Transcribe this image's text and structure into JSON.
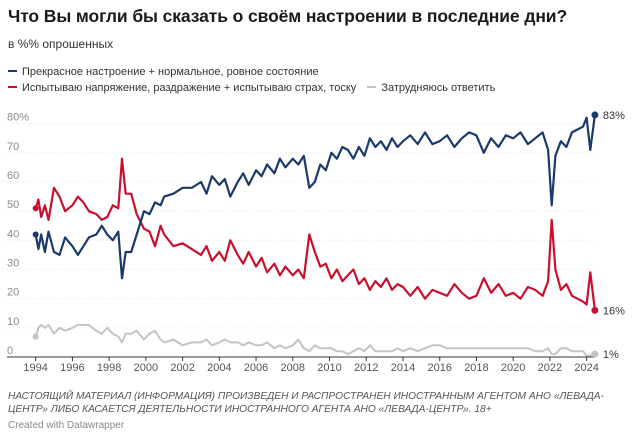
{
  "header": {
    "title": "Что Вы могли бы сказать о своём настроении в последние дни?",
    "subtitle": "в %% опрошенных"
  },
  "footer": {
    "note": "НАСТОЯЩИЙ МАТЕРИАЛ (ИНФОРМАЦИЯ) ПРОИЗВЕДЕН И РАСПРОСТРАНЕН ИНОСТРАННЫМ АГЕНТОМ АНО «ЛЕВАДА-ЦЕНТР» ЛИБО КАСАЕТСЯ ДЕЯТЕЛЬНОСТИ ИНОСТРАННОГО АГЕНТА АНО «ЛЕВАДА-ЦЕНТР». 18+",
    "credit": "Created with Datawrapper"
  },
  "chart_data": {
    "type": "line",
    "title": "Что Вы могли бы сказать о своём настроении в последние дни?",
    "subtitle": "в %% опрошенных",
    "xlim": [
      1993.8,
      2025.0
    ],
    "ylim": [
      0,
      84
    ],
    "x_ticks": [
      1994,
      1996,
      1998,
      2000,
      2002,
      2004,
      2006,
      2008,
      2010,
      2012,
      2014,
      2016,
      2018,
      2020,
      2022,
      2024
    ],
    "y_ticks": [
      0,
      10,
      20,
      30,
      40,
      50,
      60,
      70,
      80
    ],
    "y_tick_labels": [
      "0",
      "10",
      "20",
      "30",
      "40",
      "50",
      "60",
      "70",
      "80%"
    ],
    "grid": true,
    "legend_position": "top",
    "series": [
      {
        "name": "Прекрасное настроение + нормальное, ровное состояние",
        "color": "#1b3a6b",
        "end_label": "83%",
        "points": [
          [
            1994.0,
            42
          ],
          [
            1994.15,
            37
          ],
          [
            1994.3,
            42
          ],
          [
            1994.5,
            36
          ],
          [
            1994.7,
            43
          ],
          [
            1995.0,
            36
          ],
          [
            1995.3,
            35
          ],
          [
            1995.6,
            41
          ],
          [
            1996.0,
            38
          ],
          [
            1996.3,
            35
          ],
          [
            1996.6,
            38
          ],
          [
            1996.9,
            41
          ],
          [
            1997.3,
            42
          ],
          [
            1997.6,
            45
          ],
          [
            1997.9,
            42
          ],
          [
            1998.2,
            40
          ],
          [
            1998.5,
            43
          ],
          [
            1998.7,
            27
          ],
          [
            1998.9,
            36
          ],
          [
            1999.2,
            36
          ],
          [
            1999.5,
            42
          ],
          [
            1999.9,
            50
          ],
          [
            2000.2,
            49
          ],
          [
            2000.5,
            53
          ],
          [
            2000.8,
            52
          ],
          [
            2001.0,
            55
          ],
          [
            2001.5,
            56
          ],
          [
            2002.0,
            58
          ],
          [
            2002.5,
            58
          ],
          [
            2003.0,
            60
          ],
          [
            2003.3,
            56
          ],
          [
            2003.6,
            62
          ],
          [
            2004.0,
            59
          ],
          [
            2004.3,
            61
          ],
          [
            2004.6,
            55
          ],
          [
            2005.0,
            60
          ],
          [
            2005.3,
            63
          ],
          [
            2005.6,
            59
          ],
          [
            2006.0,
            64
          ],
          [
            2006.3,
            62
          ],
          [
            2006.6,
            66
          ],
          [
            2007.0,
            63
          ],
          [
            2007.3,
            68
          ],
          [
            2007.6,
            65
          ],
          [
            2008.0,
            68
          ],
          [
            2008.3,
            66
          ],
          [
            2008.6,
            69
          ],
          [
            2008.9,
            58
          ],
          [
            2009.2,
            60
          ],
          [
            2009.5,
            66
          ],
          [
            2009.8,
            64
          ],
          [
            2010.1,
            70
          ],
          [
            2010.4,
            68
          ],
          [
            2010.7,
            72
          ],
          [
            2011.0,
            71
          ],
          [
            2011.3,
            68
          ],
          [
            2011.6,
            72
          ],
          [
            2011.9,
            69
          ],
          [
            2012.2,
            75
          ],
          [
            2012.5,
            72
          ],
          [
            2012.8,
            74
          ],
          [
            2013.1,
            71
          ],
          [
            2013.4,
            75
          ],
          [
            2013.7,
            72
          ],
          [
            2014.0,
            74
          ],
          [
            2014.4,
            76
          ],
          [
            2014.8,
            73
          ],
          [
            2015.2,
            77
          ],
          [
            2015.6,
            73
          ],
          [
            2016.0,
            74
          ],
          [
            2016.4,
            76
          ],
          [
            2016.8,
            72
          ],
          [
            2017.2,
            75
          ],
          [
            2017.6,
            77
          ],
          [
            2018.0,
            76
          ],
          [
            2018.4,
            70
          ],
          [
            2018.8,
            75
          ],
          [
            2019.2,
            72
          ],
          [
            2019.6,
            76
          ],
          [
            2020.0,
            75
          ],
          [
            2020.4,
            77
          ],
          [
            2020.8,
            73
          ],
          [
            2021.2,
            75
          ],
          [
            2021.6,
            77
          ],
          [
            2021.9,
            71
          ],
          [
            2022.1,
            52
          ],
          [
            2022.3,
            69
          ],
          [
            2022.6,
            74
          ],
          [
            2022.9,
            72
          ],
          [
            2023.2,
            77
          ],
          [
            2023.5,
            78
          ],
          [
            2023.8,
            79
          ],
          [
            2024.0,
            82
          ],
          [
            2024.2,
            71
          ],
          [
            2024.45,
            83
          ]
        ]
      },
      {
        "name": "Испытываю напряжение, раздражение + испытываю страх, тоску",
        "color": "#c8102e",
        "end_label": "16%",
        "points": [
          [
            1994.0,
            51
          ],
          [
            1994.15,
            54
          ],
          [
            1994.3,
            48
          ],
          [
            1994.5,
            52
          ],
          [
            1994.7,
            47
          ],
          [
            1995.0,
            58
          ],
          [
            1995.3,
            55
          ],
          [
            1995.6,
            50
          ],
          [
            1996.0,
            52
          ],
          [
            1996.3,
            55
          ],
          [
            1996.6,
            53
          ],
          [
            1996.9,
            50
          ],
          [
            1997.3,
            49
          ],
          [
            1997.6,
            47
          ],
          [
            1997.9,
            48
          ],
          [
            1998.2,
            52
          ],
          [
            1998.5,
            51
          ],
          [
            1998.7,
            68
          ],
          [
            1998.9,
            56
          ],
          [
            1999.2,
            56
          ],
          [
            1999.5,
            49
          ],
          [
            1999.9,
            44
          ],
          [
            2000.2,
            43
          ],
          [
            2000.5,
            38
          ],
          [
            2000.8,
            45
          ],
          [
            2001.0,
            42
          ],
          [
            2001.5,
            38
          ],
          [
            2002.0,
            39
          ],
          [
            2002.5,
            37
          ],
          [
            2003.0,
            35
          ],
          [
            2003.3,
            38
          ],
          [
            2003.6,
            33
          ],
          [
            2004.0,
            36
          ],
          [
            2004.3,
            33
          ],
          [
            2004.6,
            40
          ],
          [
            2005.0,
            35
          ],
          [
            2005.3,
            32
          ],
          [
            2005.6,
            36
          ],
          [
            2006.0,
            31
          ],
          [
            2006.3,
            34
          ],
          [
            2006.6,
            29
          ],
          [
            2007.0,
            32
          ],
          [
            2007.3,
            28
          ],
          [
            2007.6,
            31
          ],
          [
            2008.0,
            28
          ],
          [
            2008.3,
            30
          ],
          [
            2008.6,
            27
          ],
          [
            2008.9,
            42
          ],
          [
            2009.2,
            36
          ],
          [
            2009.5,
            31
          ],
          [
            2009.8,
            32
          ],
          [
            2010.1,
            27
          ],
          [
            2010.4,
            30
          ],
          [
            2010.7,
            26
          ],
          [
            2011.0,
            28
          ],
          [
            2011.3,
            30
          ],
          [
            2011.6,
            25
          ],
          [
            2011.9,
            27
          ],
          [
            2012.2,
            23
          ],
          [
            2012.5,
            26
          ],
          [
            2012.8,
            24
          ],
          [
            2013.1,
            27
          ],
          [
            2013.4,
            23
          ],
          [
            2013.7,
            25
          ],
          [
            2014.0,
            24
          ],
          [
            2014.4,
            21
          ],
          [
            2014.8,
            24
          ],
          [
            2015.2,
            20
          ],
          [
            2015.6,
            23
          ],
          [
            2016.0,
            22
          ],
          [
            2016.4,
            21
          ],
          [
            2016.8,
            25
          ],
          [
            2017.2,
            22
          ],
          [
            2017.6,
            20
          ],
          [
            2018.0,
            21
          ],
          [
            2018.4,
            27
          ],
          [
            2018.8,
            22
          ],
          [
            2019.2,
            25
          ],
          [
            2019.6,
            21
          ],
          [
            2020.0,
            22
          ],
          [
            2020.4,
            20
          ],
          [
            2020.8,
            24
          ],
          [
            2021.2,
            23
          ],
          [
            2021.6,
            21
          ],
          [
            2021.9,
            26
          ],
          [
            2022.1,
            47
          ],
          [
            2022.3,
            30
          ],
          [
            2022.6,
            23
          ],
          [
            2022.9,
            25
          ],
          [
            2023.2,
            21
          ],
          [
            2023.5,
            20
          ],
          [
            2023.8,
            19
          ],
          [
            2024.0,
            18
          ],
          [
            2024.2,
            29
          ],
          [
            2024.45,
            16
          ]
        ]
      },
      {
        "name": "Затрудняюсь ответить",
        "color": "#c4c4c4",
        "end_label": "1%",
        "points": [
          [
            1994.0,
            7
          ],
          [
            1994.15,
            10
          ],
          [
            1994.3,
            11
          ],
          [
            1994.5,
            10
          ],
          [
            1994.7,
            11
          ],
          [
            1995.0,
            8
          ],
          [
            1995.3,
            10
          ],
          [
            1995.6,
            9
          ],
          [
            1996.0,
            10
          ],
          [
            1996.3,
            11
          ],
          [
            1996.6,
            11
          ],
          [
            1996.9,
            11
          ],
          [
            1997.3,
            9
          ],
          [
            1997.6,
            8
          ],
          [
            1997.9,
            10
          ],
          [
            1998.2,
            8
          ],
          [
            1998.5,
            7
          ],
          [
            1998.7,
            5
          ],
          [
            1998.9,
            8
          ],
          [
            1999.2,
            8
          ],
          [
            1999.5,
            9
          ],
          [
            1999.9,
            6
          ],
          [
            2000.2,
            8
          ],
          [
            2000.5,
            9
          ],
          [
            2000.8,
            6
          ],
          [
            2001.0,
            5
          ],
          [
            2001.5,
            6
          ],
          [
            2002.0,
            4
          ],
          [
            2002.5,
            5
          ],
          [
            2003.0,
            5
          ],
          [
            2003.3,
            6
          ],
          [
            2003.6,
            4
          ],
          [
            2004.0,
            5
          ],
          [
            2004.3,
            6
          ],
          [
            2004.6,
            5
          ],
          [
            2005.0,
            5
          ],
          [
            2005.3,
            4
          ],
          [
            2005.6,
            5
          ],
          [
            2006.0,
            4
          ],
          [
            2006.3,
            4
          ],
          [
            2006.6,
            5
          ],
          [
            2007.0,
            3
          ],
          [
            2007.3,
            4
          ],
          [
            2007.6,
            3
          ],
          [
            2008.0,
            4
          ],
          [
            2008.3,
            6
          ],
          [
            2008.6,
            3
          ],
          [
            2008.9,
            2
          ],
          [
            2009.2,
            4
          ],
          [
            2009.5,
            3
          ],
          [
            2009.8,
            3
          ],
          [
            2010.1,
            3
          ],
          [
            2010.4,
            2
          ],
          [
            2010.7,
            2
          ],
          [
            2011.0,
            1
          ],
          [
            2011.3,
            2
          ],
          [
            2011.6,
            3
          ],
          [
            2011.9,
            2
          ],
          [
            2012.2,
            4
          ],
          [
            2012.5,
            2
          ],
          [
            2012.8,
            2
          ],
          [
            2013.1,
            2
          ],
          [
            2013.4,
            2
          ],
          [
            2013.7,
            3
          ],
          [
            2014.0,
            2
          ],
          [
            2014.4,
            3
          ],
          [
            2014.8,
            2
          ],
          [
            2015.2,
            3
          ],
          [
            2015.6,
            4
          ],
          [
            2016.0,
            4
          ],
          [
            2016.4,
            3
          ],
          [
            2016.8,
            3
          ],
          [
            2017.2,
            3
          ],
          [
            2017.6,
            3
          ],
          [
            2018.0,
            3
          ],
          [
            2018.4,
            3
          ],
          [
            2018.8,
            3
          ],
          [
            2019.2,
            3
          ],
          [
            2019.6,
            3
          ],
          [
            2020.0,
            3
          ],
          [
            2020.4,
            3
          ],
          [
            2020.8,
            3
          ],
          [
            2021.2,
            2
          ],
          [
            2021.6,
            2
          ],
          [
            2021.9,
            3
          ],
          [
            2022.1,
            1
          ],
          [
            2022.3,
            1
          ],
          [
            2022.6,
            3
          ],
          [
            2022.9,
            3
          ],
          [
            2023.2,
            2
          ],
          [
            2023.5,
            2
          ],
          [
            2023.8,
            2
          ],
          [
            2024.0,
            0.5
          ],
          [
            2024.2,
            0.5
          ],
          [
            2024.45,
            1
          ]
        ]
      }
    ]
  }
}
